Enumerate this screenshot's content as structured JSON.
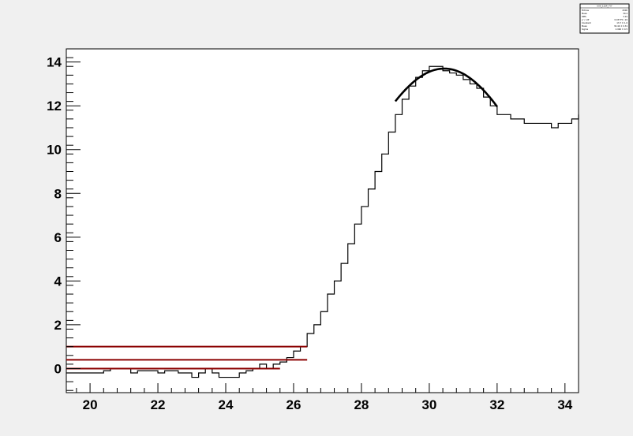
{
  "stats_box": {
    "title": "hXX_1234_YYY",
    "rows": [
      {
        "label": "Entries",
        "value": "2000"
      },
      {
        "label": "Mean",
        "value": "30.4"
      },
      {
        "label": "RMS",
        "value": "3.01"
      },
      {
        "label": "χ² / ndf",
        "value": "0.03775 / 10"
      },
      {
        "label": "Constant",
        "value": "13.7 ± 1.0"
      },
      {
        "label": "Mean",
        "value": "30.44 ± 0.31"
      },
      {
        "label": "Sigma",
        "value": "2.996 ± 0.5"
      }
    ]
  },
  "chart_data": {
    "type": "line",
    "title": "",
    "xlabel": "",
    "ylabel": "",
    "xlim": [
      19.3,
      34.4
    ],
    "ylim": [
      -1.1,
      14.6
    ],
    "x_ticks": [
      20,
      22,
      24,
      26,
      28,
      30,
      32,
      34
    ],
    "y_ticks": [
      0,
      2,
      4,
      6,
      8,
      10,
      12,
      14
    ],
    "grid": false,
    "histogram": {
      "name": "",
      "color": "#000000",
      "bin_edges": [
        19.3,
        20.4,
        20.6,
        21.2,
        21.4,
        22.0,
        22.2,
        22.6,
        22.8,
        23.0,
        23.2,
        23.4,
        23.6,
        23.8,
        24.0,
        24.4,
        24.6,
        24.8,
        25.0,
        25.2,
        25.4,
        25.6,
        25.8,
        26.0,
        26.2,
        26.4,
        26.6,
        26.8,
        27.0,
        27.2,
        27.4,
        27.6,
        27.8,
        28.0,
        28.2,
        28.4,
        28.6,
        28.8,
        29.0,
        29.2,
        29.4,
        29.6,
        29.8,
        30.0,
        30.2,
        30.4,
        30.6,
        30.8,
        31.0,
        31.2,
        31.4,
        31.6,
        31.8,
        32.0,
        32.2,
        32.4,
        32.6,
        32.8,
        33.0,
        33.2,
        33.4,
        33.6,
        33.8,
        34.0,
        34.2,
        34.4
      ],
      "counts": [
        -0.2,
        -0.1,
        0.0,
        -0.2,
        -0.1,
        -0.2,
        -0.1,
        -0.2,
        -0.2,
        -0.4,
        -0.2,
        0.0,
        -0.2,
        -0.4,
        -0.4,
        -0.2,
        -0.1,
        0.0,
        0.2,
        0.0,
        0.2,
        0.3,
        0.5,
        0.8,
        1.0,
        1.6,
        2.0,
        2.6,
        3.4,
        4.0,
        4.8,
        5.7,
        6.6,
        7.4,
        8.2,
        9.0,
        9.8,
        10.8,
        11.6,
        12.3,
        12.9,
        13.3,
        13.6,
        13.8,
        13.8,
        13.6,
        13.5,
        13.4,
        13.2,
        13.0,
        12.8,
        12.4,
        12.0,
        11.6,
        11.6,
        11.4,
        11.4,
        11.2,
        11.2,
        11.2,
        11.2,
        11.0,
        11.2,
        11.2,
        11.4,
        11.6
      ]
    },
    "fit_curve": {
      "name": "",
      "color": "#000000",
      "constant": 13.7,
      "mean": 30.44,
      "sigma": 2.996,
      "x_range": [
        29.0,
        32.0
      ]
    },
    "reference_lines": [
      {
        "y": 1.0,
        "x_range": [
          19.3,
          26.4
        ],
        "color": "#8b0000"
      },
      {
        "y": 0.4,
        "x_range": [
          19.3,
          26.4
        ],
        "color": "#8b0000"
      },
      {
        "y": 0.0,
        "x_range": [
          19.3,
          25.6
        ],
        "color": "#8b0000"
      }
    ]
  }
}
